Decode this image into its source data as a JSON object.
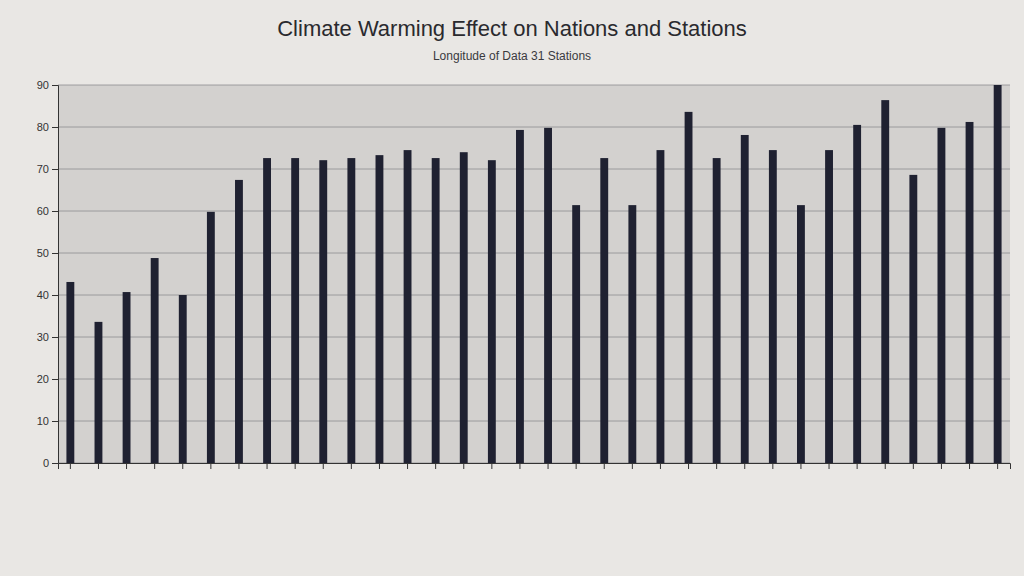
{
  "chart_data": {
    "type": "bar",
    "title": "Climate Warming Effect on Nations and Stations",
    "subtitle": "Longitude of Data 31 Stations",
    "categories": [
      null,
      null,
      null,
      null,
      null,
      null,
      null,
      null,
      null,
      null,
      null,
      null,
      null,
      null,
      null,
      null,
      null,
      null,
      null,
      null,
      null,
      null,
      null,
      null,
      null,
      null,
      null,
      null,
      null,
      null,
      null,
      null,
      null,
      null
    ],
    "values": [
      43.1,
      33.6,
      40.7,
      48.8,
      40,
      59.8,
      67.4,
      72.6,
      72.6,
      72.1,
      72.6,
      73.3,
      74.5,
      72.6,
      74,
      72.1,
      79.3,
      79.8,
      61.4,
      72.6,
      61.4,
      74.5,
      83.6,
      72.6,
      78.1,
      74.5,
      61.4,
      74.5,
      80.5,
      86.4,
      68.6,
      79.8,
      81.2,
      90
    ],
    "color": "#1f2131",
    "ylim": [
      0,
      90
    ],
    "yticks": [
      0,
      10,
      20,
      30,
      40,
      50,
      60,
      70,
      80,
      90
    ],
    "grid": true
  }
}
